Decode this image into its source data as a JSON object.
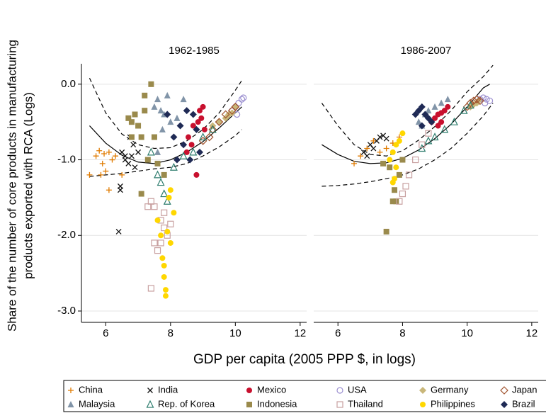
{
  "xlabel": "GDP per capita (2005 PPP $, in logs)",
  "ylabel": [
    "Share of the number of core products in manufacturing",
    "products exported with RCA (Logs)"
  ],
  "legend": {
    "items": [
      {
        "name": "China",
        "color": "#e07b00",
        "marker": "plus"
      },
      {
        "name": "India",
        "color": "#111111",
        "marker": "x"
      },
      {
        "name": "Mexico",
        "color": "#c8102e",
        "marker": "circle"
      },
      {
        "name": "USA",
        "color": "#9b8fd0",
        "marker": "circle-open"
      },
      {
        "name": "Germany",
        "color": "#c9b77a",
        "marker": "diamond"
      },
      {
        "name": "Japan",
        "color": "#a0522d",
        "marker": "diamond-open"
      },
      {
        "name": "Malaysia",
        "color": "#8194a8",
        "marker": "triangle"
      },
      {
        "name": "Rep. of Korea",
        "color": "#2e7d6e",
        "marker": "triangle-open"
      },
      {
        "name": "Indonesia",
        "color": "#9a8a4c",
        "marker": "square"
      },
      {
        "name": "Thailand",
        "color": "#c8a0a0",
        "marker": "square-open"
      },
      {
        "name": "Philippines",
        "color": "#ffd700",
        "marker": "circle"
      },
      {
        "name": "Brazil",
        "color": "#1f2a55",
        "marker": "diamond"
      }
    ]
  },
  "chart_data": [
    {
      "type": "scatter",
      "title": "1962-1985",
      "xlim": [
        5.25,
        12.2
      ],
      "ylim": [
        -3.15,
        0.27
      ],
      "xticks": [
        6,
        8,
        10,
        12
      ],
      "yticks": [
        {
          "value": 0,
          "label": "0.0"
        },
        {
          "value": -1,
          "label": "-1.0"
        },
        {
          "value": -2,
          "label": "-2.0"
        },
        {
          "value": -3,
          "label": "-3.0"
        }
      ],
      "grid": true,
      "series": [
        {
          "x": [
            5.5,
            5.7,
            5.8,
            5.9,
            6.0,
            6.1,
            6.2,
            6.3,
            6.1,
            5.85,
            6.5,
            5.95
          ],
          "values": [
            -1.2,
            -0.95,
            -0.88,
            -1.05,
            -1.15,
            -0.9,
            -1.0,
            -0.95,
            -1.4,
            -1.2,
            -1.2,
            -0.92
          ]
        },
        {
          "x": [
            6.4,
            6.45,
            6.5,
            6.6,
            6.7,
            6.8,
            6.85,
            6.9,
            7.0,
            6.45,
            6.6,
            6.75
          ],
          "values": [
            -1.95,
            -1.4,
            -0.9,
            -0.95,
            -1.05,
            -0.95,
            -0.8,
            -1.1,
            -0.9,
            -1.35,
            -1.0,
            -0.7
          ]
        },
        {
          "x": [
            8.55,
            8.7,
            8.85,
            8.9,
            9.0,
            8.65,
            8.8,
            8.5,
            9.05,
            8.95
          ],
          "values": [
            -0.7,
            -0.55,
            -0.5,
            -0.35,
            -0.3,
            -0.8,
            -1.2,
            -0.9,
            -0.6,
            -0.45
          ]
        },
        {
          "x": [
            9.9,
            10.0,
            10.1,
            10.2,
            10.25,
            10.05
          ],
          "values": [
            -0.35,
            -0.3,
            -0.25,
            -0.2,
            -0.18,
            -0.4
          ]
        },
        {
          "x": [
            9.3,
            9.5,
            9.7,
            9.8,
            9.9,
            10.0
          ],
          "values": [
            -0.55,
            -0.5,
            -0.45,
            -0.4,
            -0.38,
            -0.3
          ]
        },
        {
          "x": [
            9.0,
            9.3,
            9.5,
            9.7,
            9.9,
            10.0,
            9.2
          ],
          "values": [
            -0.75,
            -0.6,
            -0.5,
            -0.4,
            -0.35,
            -0.3,
            -0.7
          ]
        },
        {
          "x": [
            7.5,
            7.6,
            7.7,
            7.8,
            7.9,
            8.0,
            8.2,
            7.6,
            8.4,
            7.75
          ],
          "values": [
            -0.3,
            -0.2,
            -0.35,
            -0.4,
            -0.15,
            -0.5,
            -0.45,
            -0.9,
            -0.2,
            -0.6
          ]
        },
        {
          "x": [
            7.4,
            7.6,
            7.7,
            7.8,
            7.9,
            8.1,
            8.4,
            8.7,
            9.0,
            9.3
          ],
          "values": [
            -0.9,
            -1.2,
            -1.3,
            -1.45,
            -1.55,
            -1.1,
            -0.95,
            -0.9,
            -0.7,
            -0.6
          ]
        },
        {
          "x": [
            6.7,
            6.8,
            6.9,
            7.0,
            7.1,
            7.2,
            7.4,
            7.5,
            7.3,
            7.6,
            7.1,
            7.8,
            6.8,
            7.2
          ],
          "values": [
            -0.45,
            -0.7,
            -0.4,
            -0.55,
            -0.7,
            -0.35,
            0.0,
            -0.7,
            -1.0,
            -1.05,
            -1.45,
            -1.2,
            -0.5,
            -0.15
          ]
        },
        {
          "x": [
            7.3,
            7.4,
            7.5,
            7.7,
            7.8,
            7.9,
            7.7,
            7.6,
            7.4,
            7.8,
            8.0,
            7.5
          ],
          "values": [
            -1.62,
            -1.55,
            -1.62,
            -1.8,
            -1.9,
            -2.0,
            -2.1,
            -2.2,
            -2.7,
            -1.7,
            -1.85,
            -2.1
          ]
        },
        {
          "x": [
            7.6,
            7.7,
            7.75,
            7.8,
            7.85,
            7.85,
            7.9,
            7.95,
            8.0,
            8.1,
            8.0,
            7.8
          ],
          "values": [
            -1.8,
            -2.0,
            -2.3,
            -2.55,
            -2.72,
            -2.8,
            -1.95,
            -1.5,
            -1.4,
            -1.7,
            -2.1,
            -2.4
          ]
        },
        {
          "x": [
            7.9,
            8.1,
            8.3,
            8.5,
            8.7,
            8.2,
            8.4,
            8.6,
            8.8,
            8.9
          ],
          "values": [
            -0.4,
            -0.7,
            -0.55,
            -0.35,
            -0.4,
            -1.0,
            -0.8,
            -1.0,
            -0.6,
            -0.9
          ]
        }
      ],
      "curves": [
        {
          "dash": false,
          "x": [
            5.5,
            6.0,
            6.5,
            7.0,
            7.5,
            8.0,
            8.5,
            9.0,
            9.5,
            10.0,
            10.2
          ],
          "values": [
            -0.55,
            -0.78,
            -0.94,
            -1.03,
            -1.05,
            -1.0,
            -0.9,
            -0.76,
            -0.58,
            -0.38,
            -0.3
          ]
        },
        {
          "dash": true,
          "x": [
            5.5,
            6.0,
            6.5,
            7.0,
            7.5,
            8.0,
            8.5,
            9.0,
            9.5,
            10.0,
            10.2
          ],
          "values": [
            0.08,
            -0.38,
            -0.66,
            -0.8,
            -0.85,
            -0.84,
            -0.75,
            -0.6,
            -0.38,
            -0.08,
            0.05
          ]
        },
        {
          "dash": true,
          "x": [
            5.5,
            6.0,
            6.5,
            7.0,
            7.5,
            8.0,
            8.5,
            9.0,
            9.5,
            10.0,
            10.2
          ],
          "values": [
            -1.22,
            -1.2,
            -1.18,
            -1.15,
            -1.12,
            -1.1,
            -1.05,
            -0.95,
            -0.83,
            -0.68,
            -0.6
          ]
        }
      ]
    },
    {
      "type": "scatter",
      "title": "1986-2007",
      "xlim": [
        5.25,
        12.2
      ],
      "ylim": [
        -3.15,
        0.27
      ],
      "xticks": [
        6,
        8,
        10,
        12
      ],
      "yticks": [
        0,
        -1,
        -2,
        -3
      ],
      "grid": true,
      "series": [
        {
          "x": [
            6.5,
            6.7,
            6.9,
            7.1,
            7.3,
            7.5,
            7.7,
            7.9
          ],
          "values": [
            -1.05,
            -0.95,
            -0.85,
            -0.75,
            -0.9,
            -0.85,
            -0.78,
            -0.7
          ]
        },
        {
          "x": [
            6.8,
            7.0,
            7.1,
            7.2,
            7.3,
            7.4,
            7.5,
            6.9
          ],
          "values": [
            -0.9,
            -0.8,
            -0.85,
            -0.75,
            -0.7,
            -0.68,
            -0.72,
            -0.95
          ]
        },
        {
          "x": [
            8.9,
            9.0,
            9.1,
            9.2,
            9.3,
            9.4,
            9.2,
            9.1
          ],
          "values": [
            -0.5,
            -0.45,
            -0.4,
            -0.38,
            -0.35,
            -0.3,
            -0.5,
            -0.55
          ]
        },
        {
          "x": [
            10.4,
            10.5,
            10.6,
            10.7,
            10.55
          ],
          "values": [
            -0.2,
            -0.18,
            -0.2,
            -0.22,
            -0.25
          ]
        },
        {
          "x": [
            10.1,
            10.2,
            10.3,
            10.35
          ],
          "values": [
            -0.3,
            -0.27,
            -0.25,
            -0.22
          ]
        },
        {
          "x": [
            10.0,
            10.1,
            10.2,
            10.3,
            10.4
          ],
          "values": [
            -0.3,
            -0.25,
            -0.22,
            -0.2,
            -0.22
          ]
        },
        {
          "x": [
            8.5,
            8.7,
            8.8,
            9.0,
            9.2,
            9.4,
            8.6
          ],
          "values": [
            -0.5,
            -0.4,
            -0.35,
            -0.3,
            -0.25,
            -0.2,
            -0.55
          ]
        },
        {
          "x": [
            8.6,
            8.8,
            9.0,
            9.3,
            9.6,
            9.9,
            10.1
          ],
          "values": [
            -0.85,
            -0.75,
            -0.7,
            -0.6,
            -0.5,
            -0.35,
            -0.28
          ]
        },
        {
          "x": [
            7.4,
            7.6,
            7.7,
            7.8,
            7.5,
            7.9,
            8.0,
            7.75
          ],
          "values": [
            -1.05,
            -1.1,
            -1.55,
            -1.55,
            -1.95,
            -1.2,
            -1.0,
            -1.4
          ]
        },
        {
          "x": [
            7.9,
            8.0,
            8.1,
            8.2,
            8.4,
            8.6,
            8.8
          ],
          "values": [
            -1.55,
            -1.45,
            -1.35,
            -1.2,
            -1.0,
            -0.8,
            -0.65
          ]
        },
        {
          "x": [
            7.6,
            7.7,
            7.8,
            7.9,
            8.0,
            7.7,
            7.75,
            7.8
          ],
          "values": [
            -1.0,
            -0.9,
            -0.8,
            -0.75,
            -0.65,
            -1.3,
            -1.25,
            -1.1
          ]
        },
        {
          "x": [
            8.4,
            8.5,
            8.6,
            8.7,
            8.8,
            8.9,
            8.6
          ],
          "values": [
            -0.4,
            -0.35,
            -0.3,
            -0.4,
            -0.45,
            -0.5,
            -0.55
          ]
        }
      ],
      "curves": [
        {
          "dash": false,
          "x": [
            5.5,
            6.0,
            6.5,
            7.0,
            7.5,
            8.0,
            8.5,
            9.0,
            9.5,
            10.0,
            10.5,
            10.7
          ],
          "values": [
            -0.8,
            -0.93,
            -1.02,
            -1.05,
            -1.04,
            -0.98,
            -0.87,
            -0.72,
            -0.53,
            -0.3,
            -0.05,
            0.0
          ]
        },
        {
          "dash": true,
          "x": [
            5.5,
            6.0,
            6.5,
            7.0,
            7.5,
            8.0,
            8.5,
            9.0,
            9.5,
            10.0,
            10.5,
            10.8
          ],
          "values": [
            -0.25,
            -0.55,
            -0.8,
            -0.93,
            -0.95,
            -0.88,
            -0.74,
            -0.56,
            -0.35,
            -0.1,
            0.1,
            0.25
          ]
        },
        {
          "dash": true,
          "x": [
            5.5,
            6.0,
            6.5,
            7.0,
            7.5,
            8.0,
            8.5,
            9.0,
            9.5,
            10.0,
            10.5,
            10.8
          ],
          "values": [
            -1.35,
            -1.34,
            -1.32,
            -1.29,
            -1.25,
            -1.2,
            -1.12,
            -1.0,
            -0.85,
            -0.65,
            -0.42,
            -0.25
          ]
        }
      ]
    }
  ]
}
